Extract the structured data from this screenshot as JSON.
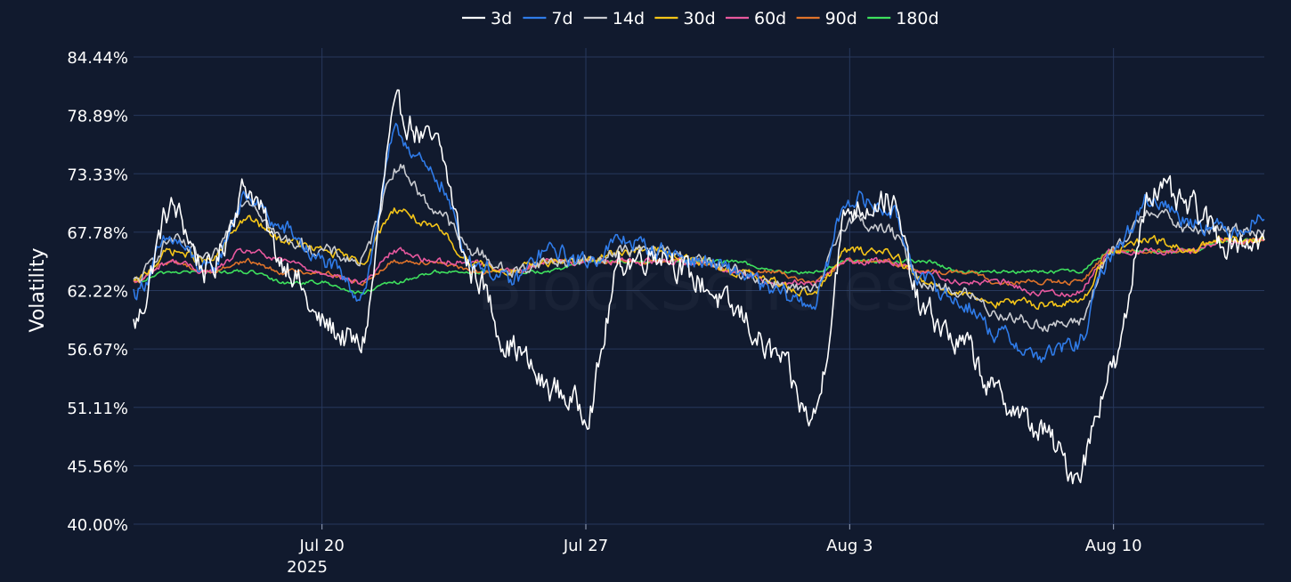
{
  "chart_data": {
    "type": "line",
    "title": "",
    "watermark": "BlockScholes",
    "xlabel": "",
    "ylabel": "Volatility",
    "x_ticks": [
      "Jul 20",
      "Jul 27",
      "Aug 3",
      "Aug 10"
    ],
    "x_year_label": "2025",
    "y_ticks": [
      "40.00%",
      "45.56%",
      "51.11%",
      "56.67%",
      "62.22%",
      "67.78%",
      "73.33%",
      "78.89%",
      "84.44%"
    ],
    "x_range": [
      "2025-07-15",
      "2025-08-14"
    ],
    "ylim": [
      40.0,
      84.44
    ],
    "grid": true,
    "legend_position": "top-center",
    "background_color": "#111a2e",
    "grid_color": "#27385c",
    "x": [
      "2025-07-15",
      "2025-07-16",
      "2025-07-17",
      "2025-07-18",
      "2025-07-19",
      "2025-07-20",
      "2025-07-21",
      "2025-07-22",
      "2025-07-23",
      "2025-07-24",
      "2025-07-25",
      "2025-07-26",
      "2025-07-27",
      "2025-07-28",
      "2025-07-29",
      "2025-07-30",
      "2025-07-31",
      "2025-08-01",
      "2025-08-02",
      "2025-08-03",
      "2025-08-04",
      "2025-08-05",
      "2025-08-06",
      "2025-08-07",
      "2025-08-08",
      "2025-08-09",
      "2025-08-10",
      "2025-08-11",
      "2025-08-12",
      "2025-08-13",
      "2025-08-14"
    ],
    "series": [
      {
        "name": "3d",
        "color": "#ffffff",
        "values": [
          59,
          70,
          64,
          72,
          65,
          59,
          57,
          79,
          76,
          64,
          57,
          53,
          51,
          65,
          66,
          63,
          60,
          56,
          50,
          70,
          71,
          60,
          57,
          52,
          49,
          45,
          55,
          72,
          70,
          67,
          67
        ]
      },
      {
        "name": "7d",
        "color": "#2f7be8",
        "values": [
          62,
          67,
          64,
          71,
          68,
          65,
          62,
          77,
          73,
          65,
          63,
          66,
          65,
          67,
          66,
          65,
          64,
          62,
          61,
          71,
          70,
          63,
          61,
          58,
          56,
          57,
          66,
          71,
          69,
          68,
          69
        ]
      },
      {
        "name": "14d",
        "color": "#c9cbd0",
        "values": [
          63,
          67,
          65,
          71,
          67,
          66,
          65,
          74,
          70,
          66,
          64,
          65,
          65,
          66,
          66,
          65,
          64,
          63,
          62,
          69,
          68,
          63,
          62,
          60,
          59,
          59,
          66,
          70,
          68,
          68,
          68
        ]
      },
      {
        "name": "30d",
        "color": "#f5c518",
        "values": [
          63,
          66,
          65,
          69,
          67,
          66,
          65,
          70,
          68,
          65,
          64,
          65,
          65,
          66,
          66,
          65,
          64,
          63,
          62,
          66,
          66,
          63,
          62,
          61,
          61,
          61,
          66,
          67,
          66,
          67,
          67
        ]
      },
      {
        "name": "60d",
        "color": "#e8589e",
        "values": [
          63,
          65,
          64,
          66,
          65,
          64,
          63,
          66,
          65,
          65,
          64,
          65,
          65,
          65,
          65,
          65,
          64,
          63,
          63,
          65,
          65,
          64,
          63,
          63,
          62,
          62,
          66,
          66,
          66,
          67,
          67
        ]
      },
      {
        "name": "90d",
        "color": "#e0732a",
        "values": [
          63,
          65,
          64,
          65,
          64,
          64,
          63,
          65,
          65,
          64,
          64,
          65,
          65,
          65,
          65,
          65,
          64,
          64,
          63,
          65,
          65,
          64,
          64,
          63,
          63,
          63,
          66,
          66,
          66,
          67,
          67
        ]
      },
      {
        "name": "180d",
        "color": "#3ee05d",
        "values": [
          63,
          64,
          64,
          64,
          63,
          63,
          62,
          63,
          64,
          64,
          64,
          64,
          65,
          65,
          65,
          65,
          65,
          64,
          64,
          65,
          65,
          65,
          64,
          64,
          64,
          64,
          66,
          66,
          66,
          67,
          67
        ]
      }
    ]
  }
}
